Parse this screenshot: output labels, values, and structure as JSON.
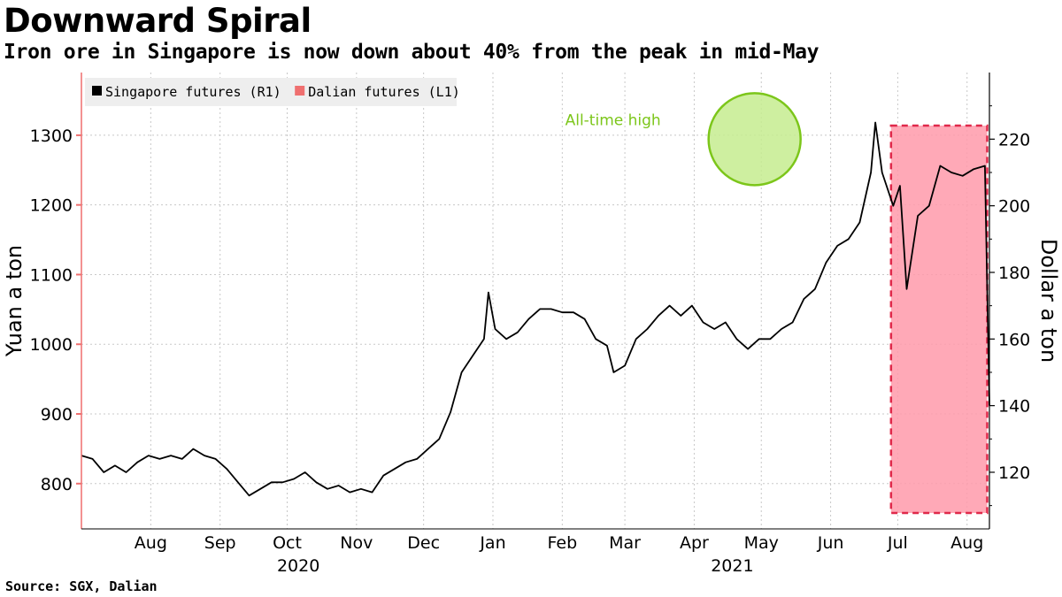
{
  "header": {
    "title": "Downward Spiral",
    "subtitle": "Iron ore in Singapore is now down about 40% from the peak in mid-May"
  },
  "footer": {
    "source": "Source: SGX, Dalian"
  },
  "colors": {
    "singapore": "#000000",
    "dalian": "#ef6f6f",
    "highlight_fill": "#ff9aaa",
    "highlight_border": "#e0294a",
    "circle_fill": "#c5ec8f",
    "circle_border": "#7cc61a",
    "annotation": "#7cc61a"
  },
  "chart_data": {
    "type": "line",
    "title": "Downward Spiral",
    "subtitle": "Iron ore in Singapore is now down about 40% from the peak in mid-May",
    "legend": {
      "placement": "top-left",
      "items": [
        {
          "label": "Singapore futures (R1)",
          "color": "#000000"
        },
        {
          "label": "Dalian futures (L1)",
          "color": "#ef6f6f"
        }
      ]
    },
    "y_left": {
      "label": "Yuan a ton",
      "ylim": [
        735,
        1390
      ],
      "ticks": [
        800,
        900,
        1000,
        1100,
        1200,
        1300
      ]
    },
    "y_right": {
      "label": "Dollar a ton",
      "ylim": [
        103,
        240
      ],
      "ticks": [
        120,
        140,
        160,
        180,
        200,
        220
      ]
    },
    "x_axis": {
      "range": [
        "2020-07-15",
        "2021-08-25"
      ],
      "month_ticks": [
        {
          "label": "Aug",
          "date": "2020-08-15"
        },
        {
          "label": "Sep",
          "date": "2020-09-15"
        },
        {
          "label": "Oct",
          "date": "2020-10-15"
        },
        {
          "label": "Nov",
          "date": "2020-11-15"
        },
        {
          "label": "Dec",
          "date": "2020-12-15"
        },
        {
          "label": "Jan",
          "date": "2021-01-15"
        },
        {
          "label": "Feb",
          "date": "2021-02-15"
        },
        {
          "label": "Mar",
          "date": "2021-03-15"
        },
        {
          "label": "Apr",
          "date": "2021-04-15"
        },
        {
          "label": "May",
          "date": "2021-05-15"
        },
        {
          "label": "Jun",
          "date": "2021-06-15"
        },
        {
          "label": "Jul",
          "date": "2021-07-15"
        },
        {
          "label": "Aug",
          "date": "2021-08-15"
        }
      ],
      "year_labels": [
        {
          "label": "2020",
          "date": "2020-10-20"
        },
        {
          "label": "2021",
          "date": "2021-05-02"
        }
      ]
    },
    "grid": true,
    "annotations": [
      {
        "text": "All-time high",
        "date": "2021-05-12",
        "value": 220,
        "type": "circle"
      }
    ],
    "highlight_range": {
      "start": "2021-07-12",
      "end": "2021-08-24"
    },
    "series": [
      {
        "name": "Singapore futures (R1)",
        "axis": "right",
        "points": [
          [
            "2020-07-15",
            125
          ],
          [
            "2020-07-20",
            124
          ],
          [
            "2020-07-25",
            120
          ],
          [
            "2020-07-30",
            122
          ],
          [
            "2020-08-04",
            120
          ],
          [
            "2020-08-09",
            123
          ],
          [
            "2020-08-14",
            125
          ],
          [
            "2020-08-19",
            124
          ],
          [
            "2020-08-24",
            125
          ],
          [
            "2020-08-29",
            124
          ],
          [
            "2020-09-03",
            127
          ],
          [
            "2020-09-08",
            125
          ],
          [
            "2020-09-13",
            124
          ],
          [
            "2020-09-18",
            121
          ],
          [
            "2020-09-23",
            117
          ],
          [
            "2020-09-28",
            113
          ],
          [
            "2020-10-03",
            115
          ],
          [
            "2020-10-08",
            117
          ],
          [
            "2020-10-13",
            117
          ],
          [
            "2020-10-18",
            118
          ],
          [
            "2020-10-23",
            120
          ],
          [
            "2020-10-28",
            117
          ],
          [
            "2020-11-02",
            115
          ],
          [
            "2020-11-07",
            116
          ],
          [
            "2020-11-12",
            114
          ],
          [
            "2020-11-17",
            115
          ],
          [
            "2020-11-22",
            114
          ],
          [
            "2020-11-27",
            119
          ],
          [
            "2020-12-02",
            121
          ],
          [
            "2020-12-07",
            123
          ],
          [
            "2020-12-12",
            124
          ],
          [
            "2020-12-17",
            127
          ],
          [
            "2020-12-22",
            130
          ],
          [
            "2020-12-27",
            138
          ],
          [
            "2021-01-01",
            150
          ],
          [
            "2021-01-06",
            155
          ],
          [
            "2021-01-11",
            160
          ],
          [
            "2021-01-13",
            174
          ],
          [
            "2021-01-16",
            163
          ],
          [
            "2021-01-21",
            160
          ],
          [
            "2021-01-26",
            162
          ],
          [
            "2021-01-31",
            166
          ],
          [
            "2021-02-05",
            169
          ],
          [
            "2021-02-10",
            169
          ],
          [
            "2021-02-15",
            168
          ],
          [
            "2021-02-20",
            168
          ],
          [
            "2021-02-25",
            166
          ],
          [
            "2021-03-02",
            160
          ],
          [
            "2021-03-07",
            158
          ],
          [
            "2021-03-10",
            150
          ],
          [
            "2021-03-15",
            152
          ],
          [
            "2021-03-20",
            160
          ],
          [
            "2021-03-25",
            163
          ],
          [
            "2021-03-30",
            167
          ],
          [
            "2021-04-04",
            170
          ],
          [
            "2021-04-09",
            167
          ],
          [
            "2021-04-14",
            170
          ],
          [
            "2021-04-19",
            165
          ],
          [
            "2021-04-24",
            163
          ],
          [
            "2021-04-29",
            165
          ],
          [
            "2021-05-04",
            160
          ],
          [
            "2021-05-09",
            157
          ],
          [
            "2021-05-14",
            160
          ],
          [
            "2021-05-19",
            160
          ],
          [
            "2021-05-24",
            163
          ],
          [
            "2021-05-29",
            165
          ],
          [
            "2021-06-03",
            172
          ],
          [
            "2021-06-08",
            175
          ],
          [
            "2021-06-13",
            183
          ],
          [
            "2021-06-18",
            188
          ],
          [
            "2021-06-23",
            190
          ],
          [
            "2021-06-28",
            195
          ],
          [
            "2021-07-03",
            210
          ],
          [
            "2021-07-05",
            225
          ],
          [
            "2021-07-08",
            210
          ],
          [
            "2021-07-13",
            200
          ],
          [
            "2021-07-16",
            206
          ],
          [
            "2021-07-19",
            175
          ],
          [
            "2021-07-24",
            197
          ],
          [
            "2021-07-29",
            200
          ],
          [
            "2021-08-03",
            212
          ],
          [
            "2021-08-08",
            210
          ],
          [
            "2021-08-13",
            209
          ],
          [
            "2021-08-18",
            211
          ],
          [
            "2021-08-23",
            212
          ],
          [
            "2021-08-25",
            140
          ]
        ]
      }
    ]
  }
}
